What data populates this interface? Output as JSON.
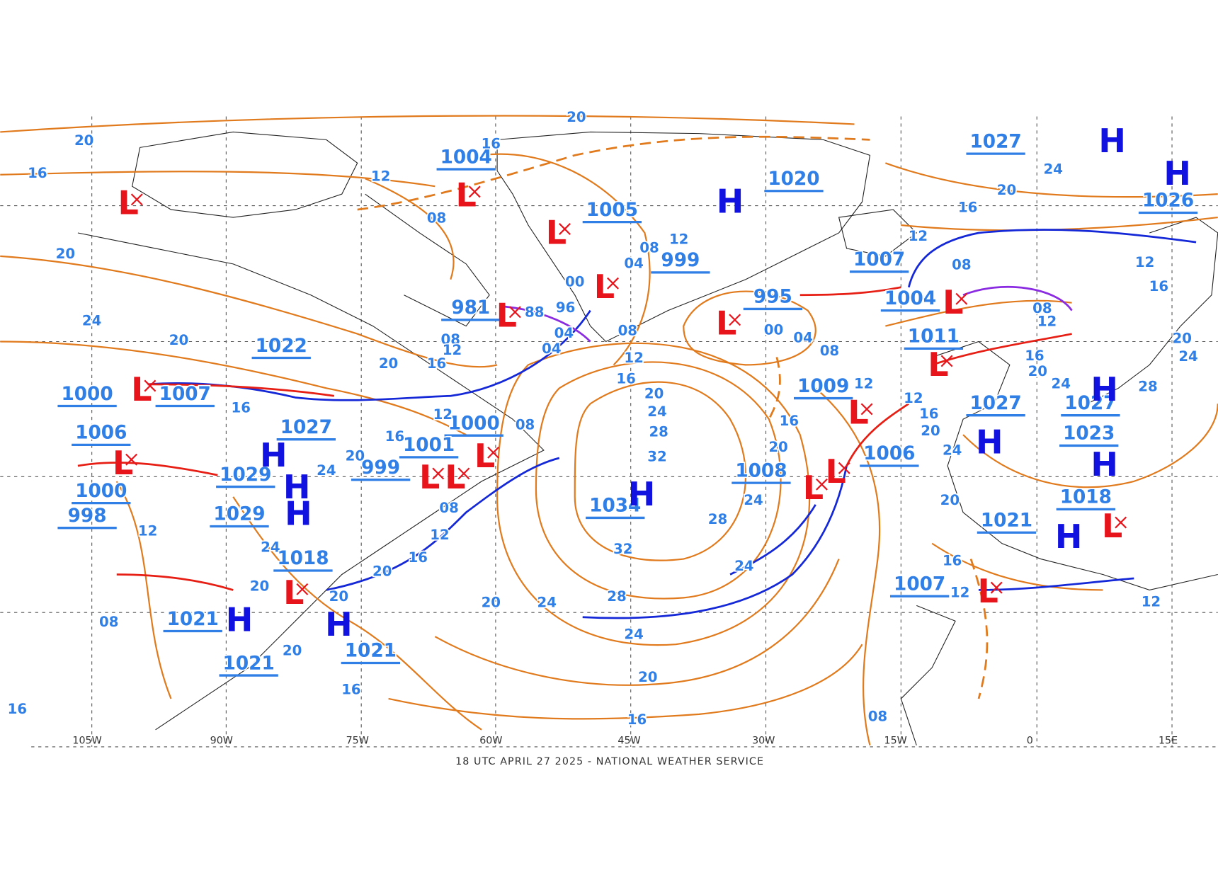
{
  "footer": "18 UTC APRIL 27 2025 - NATIONAL WEATHER SERVICE",
  "longitudes": [
    "105W",
    "90W",
    "75W",
    "60W",
    "45W",
    "30W",
    "15W",
    "0",
    "15E"
  ],
  "pressures": [
    1004,
    1005,
    999,
    1020,
    1027,
    1026,
    1007,
    1004,
    995,
    981,
    1022,
    1007,
    1000,
    1006,
    1027,
    1029,
    1029,
    1000,
    1001,
    999,
    1034,
    1008,
    1009,
    1006,
    1011,
    1027,
    1027,
    1023,
    1018,
    1021,
    1021,
    1021,
    1021,
    1018,
    1007,
    998,
    1000
  ],
  "centers": [
    "H",
    "H",
    "H",
    "H",
    "H",
    "H",
    "H",
    "H",
    "H",
    "H",
    "H",
    "H",
    "H",
    "L",
    "L",
    "L",
    "L",
    "L",
    "L",
    "L",
    "L",
    "L",
    "L",
    "L",
    "L",
    "L",
    "L",
    "L",
    "L",
    "L",
    "L",
    "L"
  ],
  "isobar_labels": [
    "20",
    "16",
    "12",
    "08",
    "16",
    "20",
    "08",
    "04",
    "12",
    "00",
    "96",
    "88",
    "04",
    "08",
    "04",
    "08",
    "12",
    "16",
    "20",
    "24",
    "28",
    "32",
    "28",
    "32",
    "28",
    "24",
    "20",
    "16",
    "24",
    "20",
    "00",
    "04",
    "08",
    "12",
    "16",
    "20",
    "24",
    "24",
    "12",
    "16",
    "20",
    "24",
    "08",
    "08",
    "12",
    "16",
    "20",
    "24",
    "28",
    "20",
    "24",
    "16",
    "12",
    "20",
    "20",
    "24",
    "16",
    "12",
    "16",
    "12",
    "12",
    "08",
    "20",
    "24",
    "20",
    "16",
    "20",
    "16",
    "12",
    "16",
    "24",
    "20",
    "08",
    "12",
    "08",
    "12",
    "16",
    "20",
    "20",
    "20",
    "24",
    "12",
    "08",
    "16",
    "16",
    "20"
  ]
}
